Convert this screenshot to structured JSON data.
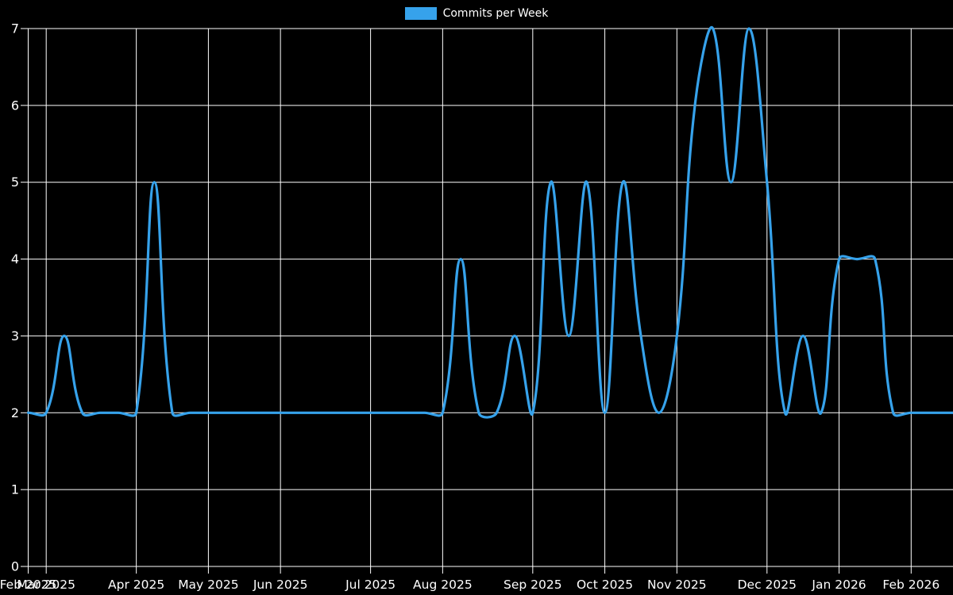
{
  "legend": {
    "label": "Commits per Week"
  },
  "chart_data": {
    "type": "line",
    "title": "",
    "legend_position": "top",
    "grid": true,
    "ylim": [
      0,
      7
    ],
    "yticks": [
      0,
      1,
      2,
      3,
      4,
      5,
      6,
      7
    ],
    "month_ticks": [
      {
        "label": "Feb 2025",
        "week": 0
      },
      {
        "label": "Mar 2025",
        "week": 1
      },
      {
        "label": "Apr 2025",
        "week": 6
      },
      {
        "label": "May 2025",
        "week": 10
      },
      {
        "label": "Jun 2025",
        "week": 14
      },
      {
        "label": "Jul 2025",
        "week": 19
      },
      {
        "label": "Aug 2025",
        "week": 23
      },
      {
        "label": "Sep 2025",
        "week": 28
      },
      {
        "label": "Oct 2025",
        "week": 32
      },
      {
        "label": "Nov 2025",
        "week": 36
      },
      {
        "label": "Dec 2025",
        "week": 41
      },
      {
        "label": "Jan 2026",
        "week": 45
      },
      {
        "label": "Feb 2026",
        "week": 49
      }
    ],
    "series": [
      {
        "name": "Commits per Week",
        "x": [
          "2025-02-23",
          "2025-03-02",
          "2025-03-09",
          "2025-03-16",
          "2025-03-23",
          "2025-03-30",
          "2025-04-06",
          "2025-04-13",
          "2025-04-20",
          "2025-04-27",
          "2025-05-04",
          "2025-05-11",
          "2025-05-18",
          "2025-05-25",
          "2025-06-01",
          "2025-06-08",
          "2025-06-15",
          "2025-06-22",
          "2025-06-29",
          "2025-07-06",
          "2025-07-13",
          "2025-07-20",
          "2025-07-27",
          "2025-08-03",
          "2025-08-10",
          "2025-08-17",
          "2025-08-24",
          "2025-08-31",
          "2025-09-07",
          "2025-09-14",
          "2025-09-21",
          "2025-09-28",
          "2025-10-05",
          "2025-10-12",
          "2025-10-19",
          "2025-10-26",
          "2025-11-02",
          "2025-11-09",
          "2025-11-16",
          "2025-11-23",
          "2025-11-30",
          "2025-12-07",
          "2025-12-14",
          "2025-12-21",
          "2025-12-28",
          "2026-01-04",
          "2026-01-11",
          "2026-01-18",
          "2026-01-25",
          "2026-02-01",
          "2026-02-08",
          "2026-02-15",
          "2026-02-22"
        ],
        "values": [
          2,
          2,
          3,
          2,
          2,
          2,
          2,
          5,
          2,
          2,
          2,
          2,
          2,
          2,
          2,
          2,
          2,
          2,
          2,
          2,
          2,
          2,
          2,
          2,
          4,
          2,
          2,
          3,
          2,
          5,
          3,
          5,
          2,
          5,
          3,
          2,
          3,
          6,
          7,
          5,
          7,
          5,
          2,
          3,
          2,
          4,
          4,
          4,
          2,
          2,
          2,
          2,
          2
        ]
      }
    ],
    "colors": {
      "background": "#000000",
      "grid": "#ffffff",
      "axis": "#ffffff",
      "text": "#ffffff",
      "line": "#36A2EB"
    }
  }
}
